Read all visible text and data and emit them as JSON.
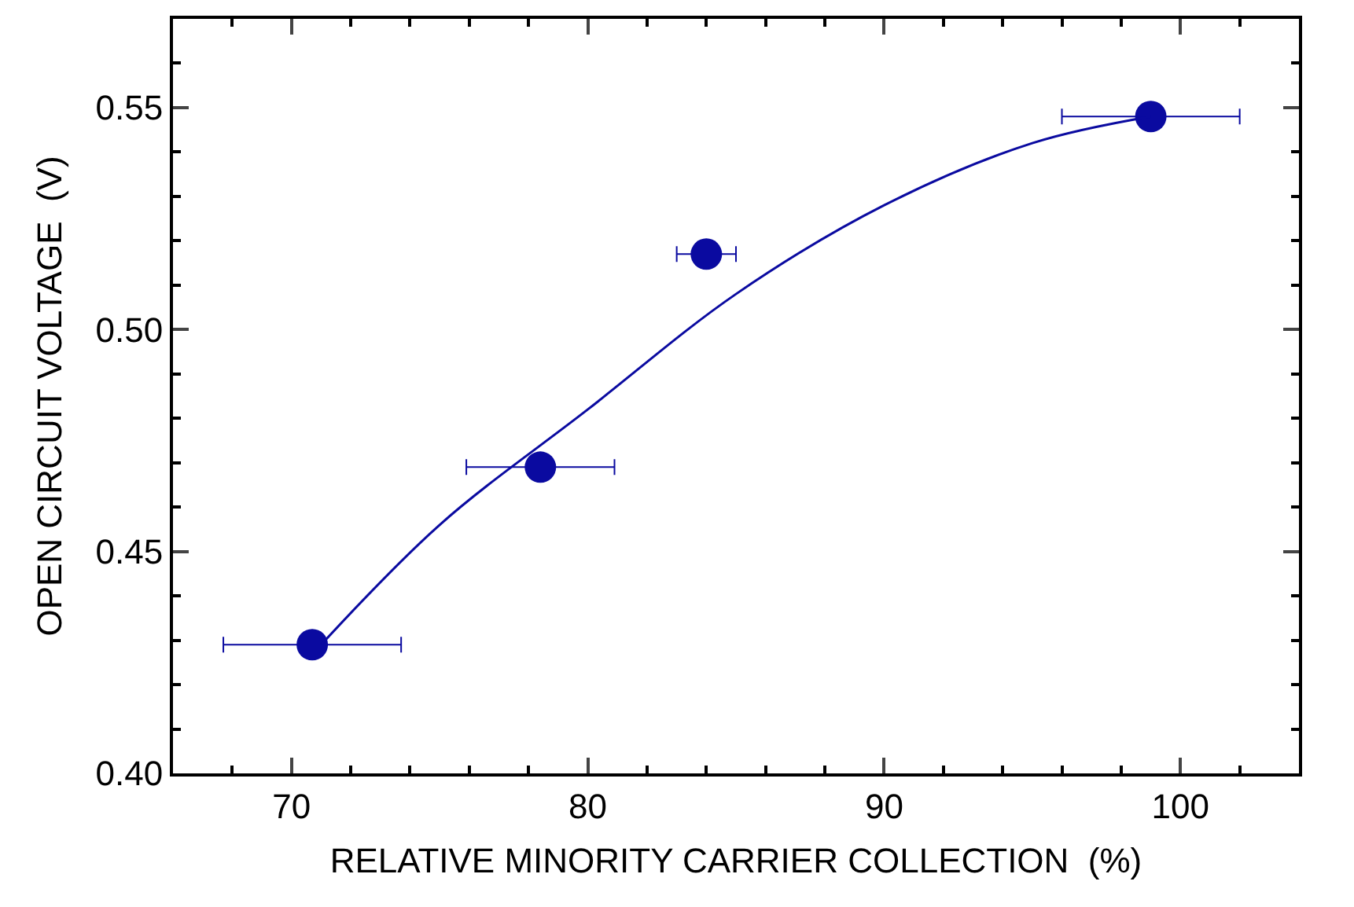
{
  "chart_data": {
    "type": "scatter",
    "xlabel": "RELATIVE MINORITY CARRIER COLLECTION  (%)",
    "ylabel": "OPEN CIRCUIT VOLTAGE  (V)",
    "xlim": [
      66,
      104
    ],
    "ylim": [
      0.4,
      0.57
    ],
    "xticks": [
      70,
      80,
      90,
      100
    ],
    "yticks": [
      {
        "value": 0.4,
        "label": "0.40"
      },
      {
        "value": 0.45,
        "label": "0.45"
      },
      {
        "value": 0.5,
        "label": "0.50"
      },
      {
        "value": 0.55,
        "label": "0.55"
      }
    ],
    "series": [
      {
        "color": "#0a0aa0",
        "x": [
          70.7,
          78.4,
          84.0,
          99.0
        ],
        "values": [
          0.429,
          0.469,
          0.517,
          0.548
        ],
        "xerrors": [
          3,
          2.5,
          1,
          3
        ],
        "marker": "circle"
      },
      {
        "type": "line",
        "color": "#0a0aa0",
        "line_style": "solid",
        "x": [
          71,
          75,
          80,
          85,
          90,
          95,
          99
        ],
        "values": [
          0.429,
          0.456,
          0.482,
          0.508,
          0.528,
          0.542,
          0.548
        ]
      }
    ]
  }
}
